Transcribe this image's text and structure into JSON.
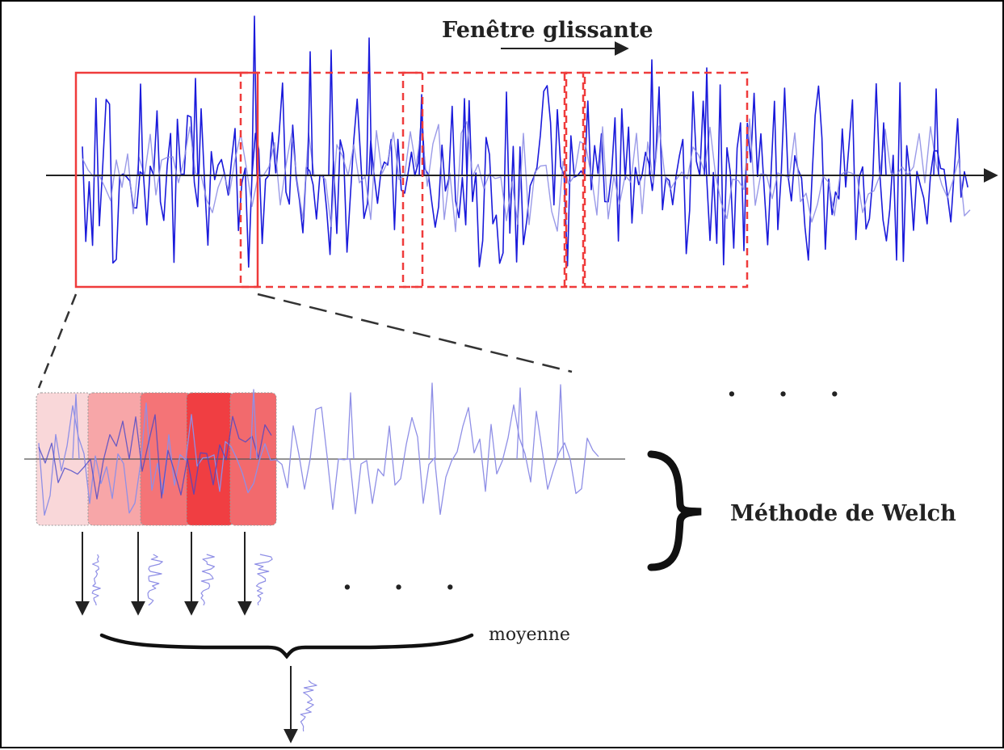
{
  "figure": {
    "title": "Fenêtre glissante",
    "method_label": "Méthode de Welch",
    "average_label": "moyenne",
    "ellipsis_right": ". . .",
    "ellipsis_bottom": ". . ."
  },
  "colors": {
    "signal": "#1a1adb",
    "signal_light": "#8f8fe6",
    "window": "#ef3b3b",
    "axis": "#222222",
    "segment_fills": [
      "#f9d7d9",
      "#f7a6a8",
      "#f47477",
      "#f03e42",
      "#f26a6d"
    ]
  },
  "windows": {
    "solid_count": 1,
    "dashed_count": 4,
    "zoom_segments": 5,
    "spectra_count": 4
  }
}
